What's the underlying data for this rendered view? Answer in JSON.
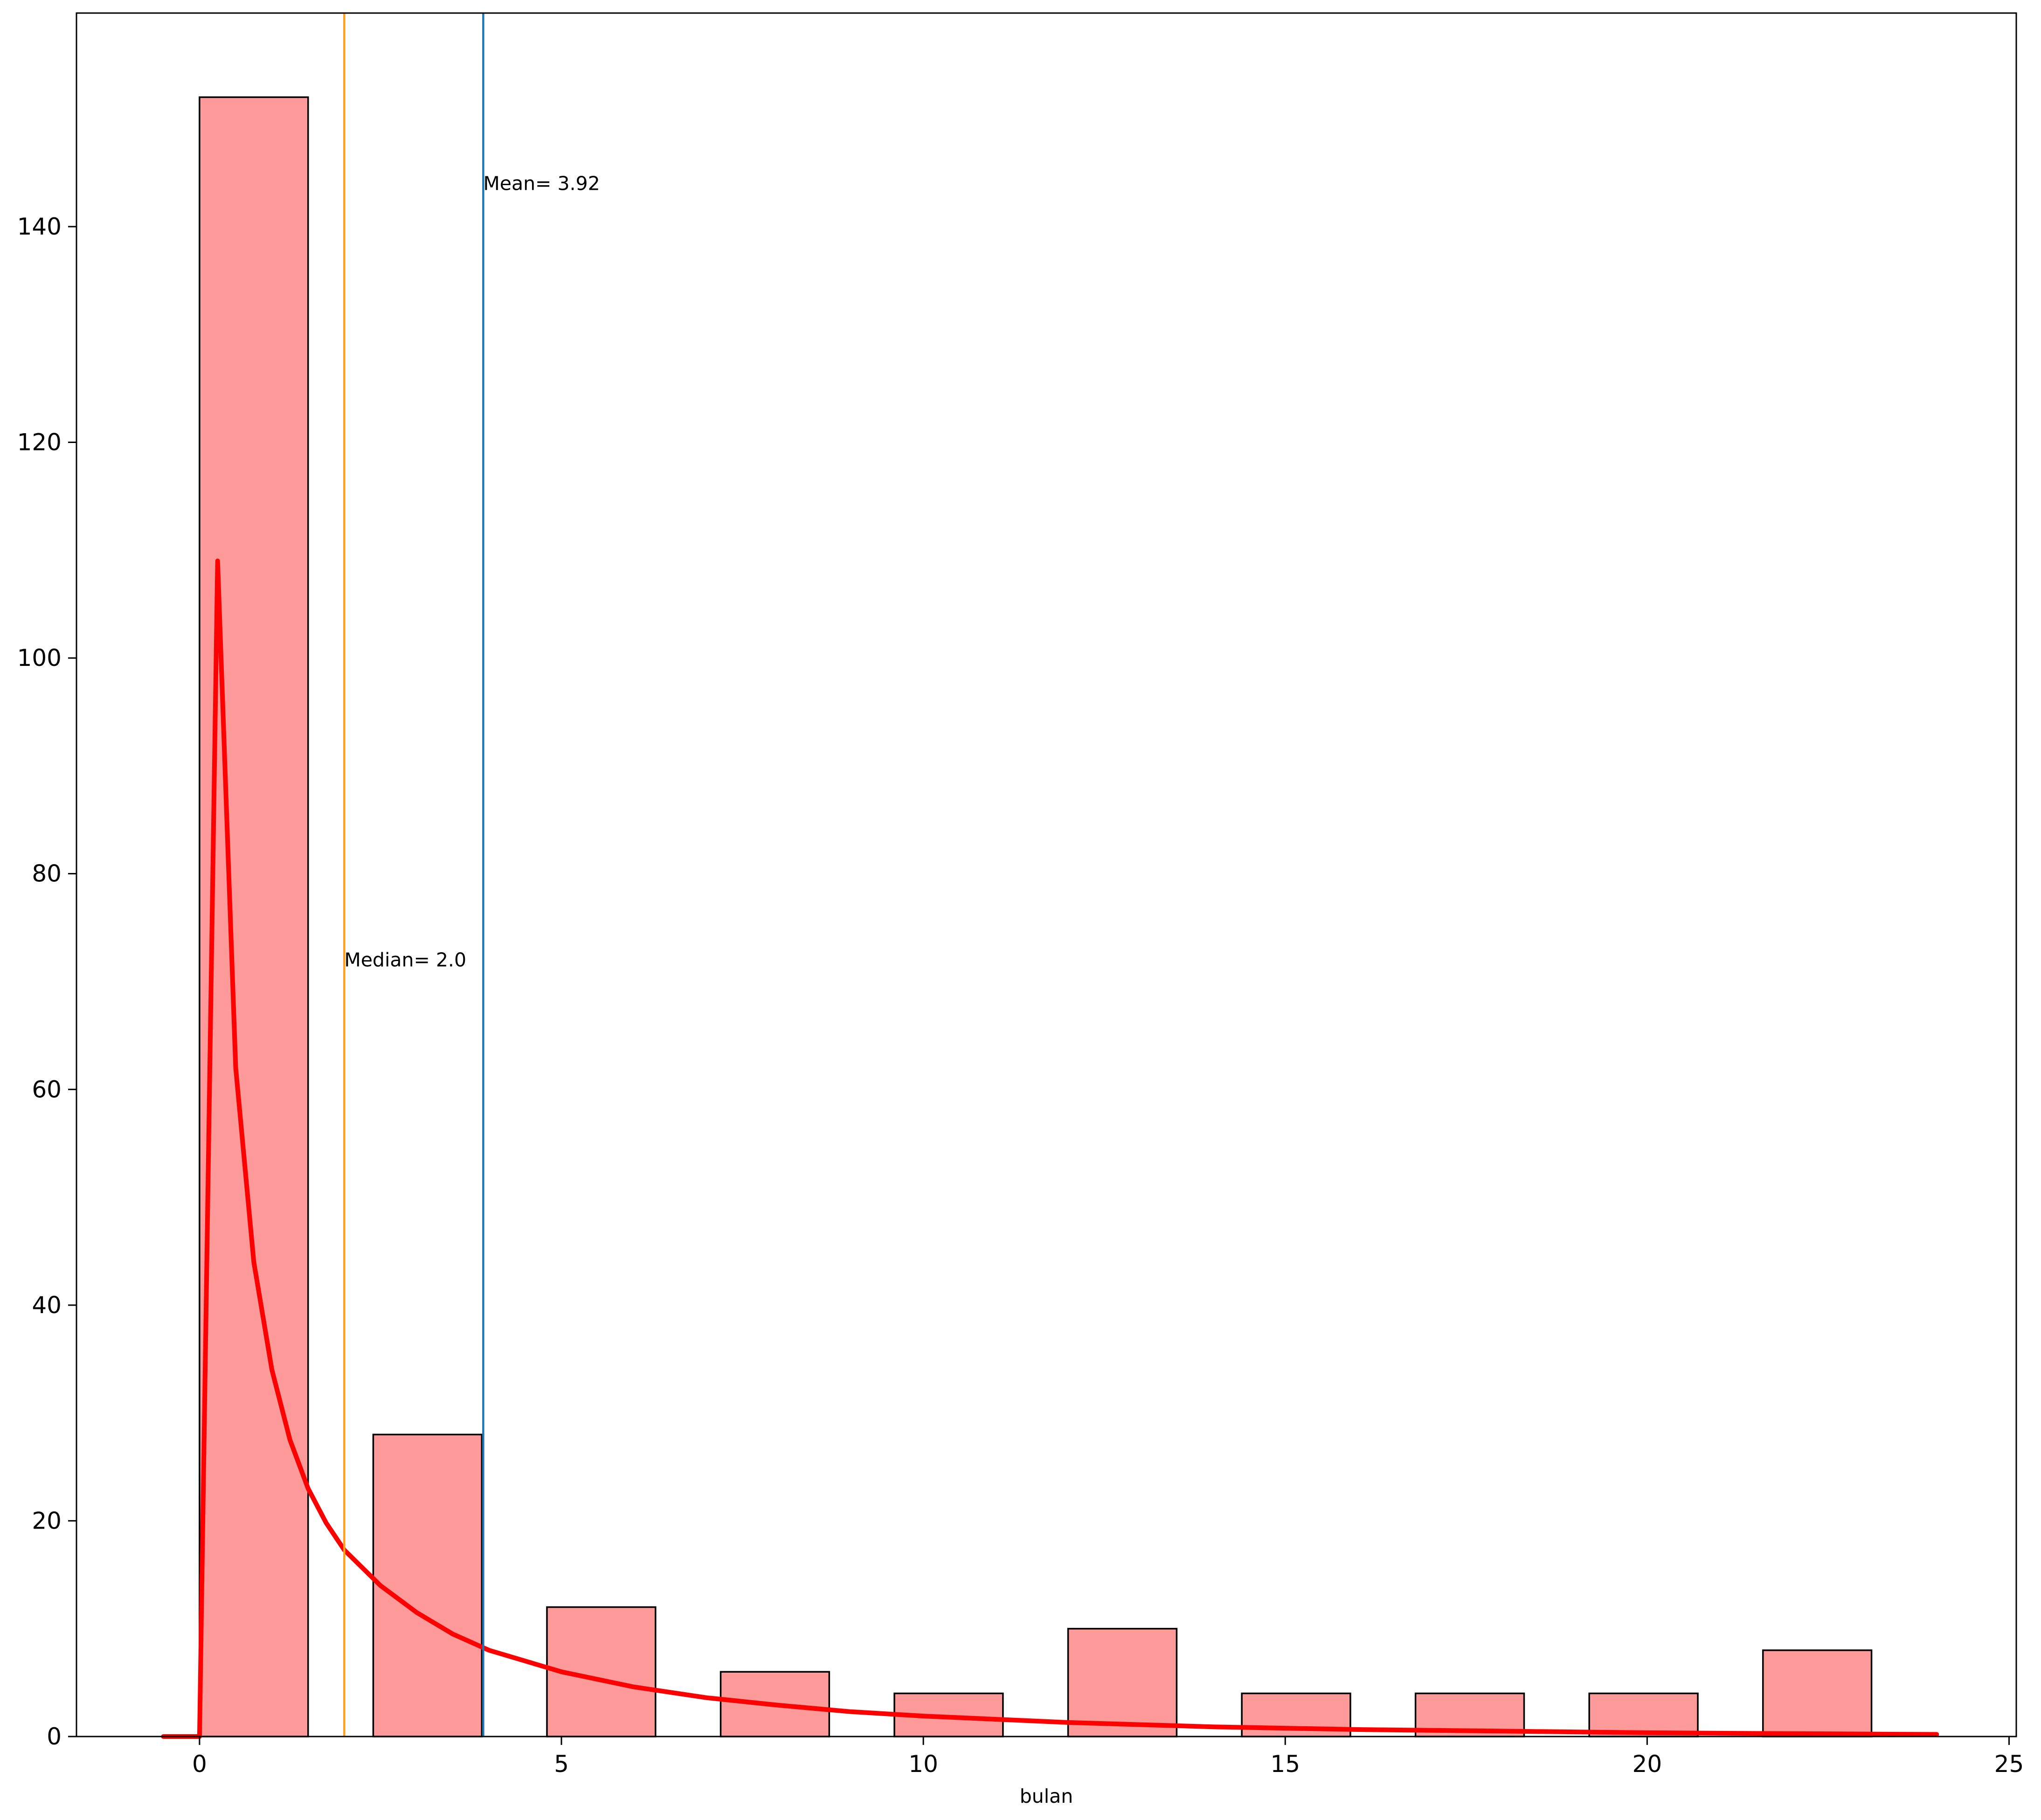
{
  "chart_data": {
    "type": "bar",
    "title": "",
    "xlabel": "bulan",
    "ylabel": "",
    "xlim": [
      -1.7,
      25.1
    ],
    "ylim": [
      0,
      159.8
    ],
    "xticks": [
      0,
      5,
      10,
      15,
      20,
      25
    ],
    "yticks": [
      0,
      20,
      40,
      60,
      80,
      100,
      120,
      140
    ],
    "grid": false,
    "bars": [
      {
        "x0": 0.0,
        "x1": 1.5,
        "value": 152
      },
      {
        "x0": 2.4,
        "x1": 3.9,
        "value": 28
      },
      {
        "x0": 4.8,
        "x1": 6.3,
        "value": 12
      },
      {
        "x0": 7.2,
        "x1": 8.7,
        "value": 6
      },
      {
        "x0": 9.6,
        "x1": 11.1,
        "value": 4
      },
      {
        "x0": 12.0,
        "x1": 13.5,
        "value": 10
      },
      {
        "x0": 14.4,
        "x1": 15.9,
        "value": 4
      },
      {
        "x0": 16.8,
        "x1": 18.3,
        "value": 4
      },
      {
        "x0": 19.2,
        "x1": 20.7,
        "value": 4
      },
      {
        "x0": 21.6,
        "x1": 23.1,
        "value": 8
      }
    ],
    "curve": {
      "x": [
        -0.5,
        0.0,
        0.25,
        0.5,
        0.75,
        1.0,
        1.25,
        1.5,
        1.75,
        2.0,
        2.5,
        3.0,
        3.5,
        4.0,
        5.0,
        6.0,
        7.0,
        8.0,
        9.0,
        10.0,
        12.0,
        14.0,
        16.0,
        18.0,
        20.0,
        22.0,
        24.0
      ],
      "y": [
        0,
        0,
        109,
        62,
        44,
        34,
        27.5,
        23,
        19.8,
        17.3,
        14,
        11.5,
        9.5,
        8,
        6,
        4.6,
        3.6,
        2.9,
        2.3,
        1.9,
        1.3,
        0.9,
        0.65,
        0.5,
        0.35,
        0.27,
        0.2
      ]
    },
    "vlines": [
      {
        "x": 2.0,
        "label": "Median= 2.0",
        "label_y": 72,
        "color": "#ff9f1c"
      },
      {
        "x": 3.92,
        "label": "Mean= 3.92",
        "label_y": 144,
        "color": "#1f77b4"
      }
    ],
    "colors": {
      "bar_fill": "#ff9a9a",
      "bar_edge": "#000000",
      "curve": "#ff0000"
    }
  }
}
